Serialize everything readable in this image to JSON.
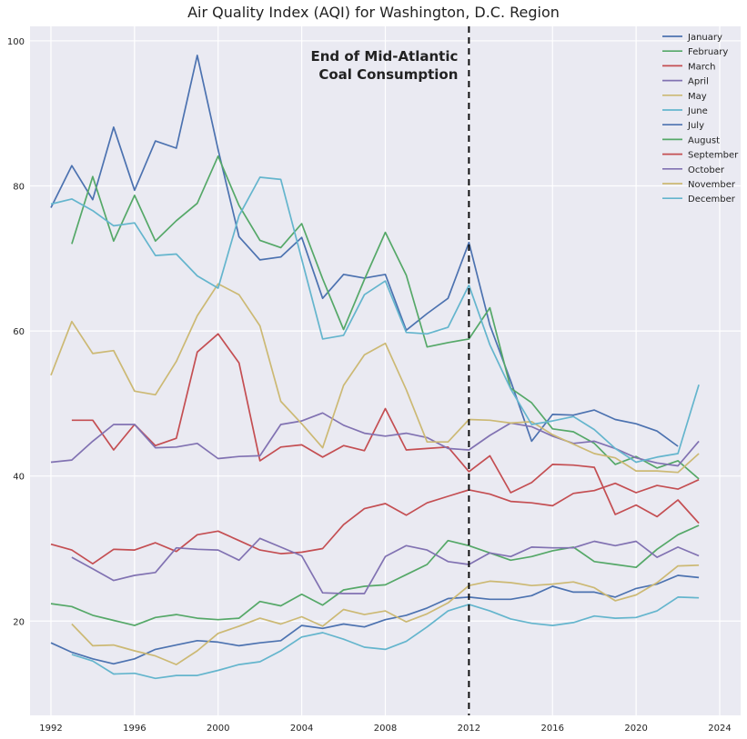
{
  "chart_data": {
    "type": "line",
    "title": "Air Quality Index (AQI) for Washington, D.C. Region",
    "xlabel": "",
    "ylabel": "",
    "xlim": [
      1991,
      2025
    ],
    "ylim": [
      7,
      102
    ],
    "x_ticks": [
      "1992",
      "1996",
      "2000",
      "2004",
      "2008",
      "2012",
      "2016",
      "2020",
      "2024"
    ],
    "y_ticks": [
      "20",
      "40",
      "60",
      "80",
      "100"
    ],
    "grid": true,
    "legend_position": "top-right",
    "annotation": {
      "line1": "End of Mid-Atlantic",
      "line2": "Coal Consumption",
      "x": 2012
    },
    "series": [
      {
        "name": "January",
        "color": "#4c72b0",
        "x": [
          1992,
          1993,
          1994,
          1995,
          1996,
          1997,
          1998,
          1999,
          2000,
          2001,
          2002,
          2003,
          2004,
          2005,
          2006,
          2007,
          2008,
          2009,
          2010,
          2011,
          2012,
          2013,
          2014,
          2015,
          2016,
          2017,
          2018,
          2019,
          2020,
          2021,
          2022,
          2023
        ],
        "y": [
          17.0,
          15.7,
          14.8,
          14.1,
          14.8,
          16.1,
          16.7,
          17.3,
          17.1,
          16.6,
          17.0,
          17.3,
          19.4,
          19.0,
          19.6,
          19.2,
          20.2,
          20.8,
          21.8,
          23.1,
          23.3,
          23.0,
          23.0,
          23.5,
          24.8,
          24.0,
          24.0,
          23.3,
          24.5,
          25.1,
          26.3,
          26.0
        ]
      },
      {
        "name": "February",
        "color": "#55a868",
        "x": [
          1992,
          1993,
          1994,
          1995,
          1996,
          1997,
          1998,
          1999,
          2000,
          2001,
          2002,
          2003,
          2004,
          2005,
          2006,
          2007,
          2008,
          2009,
          2010,
          2011,
          2012,
          2013,
          2014,
          2015,
          2016,
          2017,
          2018,
          2019,
          2020,
          2021,
          2022,
          2023
        ],
        "y": [
          22.4,
          22.0,
          20.8,
          20.1,
          19.4,
          20.5,
          20.9,
          20.4,
          20.2,
          20.4,
          22.7,
          22.1,
          23.7,
          22.2,
          24.3,
          24.8,
          25.0,
          26.4,
          27.8,
          31.1,
          30.4,
          29.4,
          28.4,
          28.9,
          29.7,
          30.2,
          28.2,
          27.8,
          27.4,
          29.9,
          31.9,
          33.2
        ]
      },
      {
        "name": "March",
        "color": "#c44e52",
        "x": [
          1992,
          1993,
          1994,
          1995,
          1996,
          1997,
          1998,
          1999,
          2000,
          2001,
          2002,
          2003,
          2004,
          2005,
          2006,
          2007,
          2008,
          2009,
          2010,
          2011,
          2012,
          2013,
          2014,
          2015,
          2016,
          2017,
          2018,
          2019,
          2020,
          2021,
          2022,
          2023
        ],
        "y": [
          30.6,
          29.8,
          27.9,
          29.9,
          29.8,
          30.8,
          29.6,
          31.9,
          32.4,
          31.1,
          29.8,
          29.3,
          29.5,
          30.0,
          33.3,
          35.5,
          36.2,
          34.6,
          36.3,
          37.2,
          38.1,
          37.5,
          36.5,
          36.3,
          35.9,
          37.6,
          38.0,
          39.0,
          37.7,
          38.7,
          38.2,
          39.5
        ]
      },
      {
        "name": "April",
        "color": "#8172b2",
        "x": [
          1993,
          1994,
          1995,
          1996,
          1997,
          1998,
          1999,
          2000,
          2001,
          2002,
          2003,
          2004,
          2005,
          2006,
          2007,
          2008,
          2009,
          2010,
          2011,
          2012,
          2013,
          2014,
          2015,
          2016,
          2017,
          2018,
          2019,
          2020,
          2021,
          2022,
          2023
        ],
        "y": [
          28.8,
          27.2,
          25.6,
          26.3,
          26.7,
          30.1,
          29.9,
          29.8,
          28.4,
          31.4,
          30.2,
          29.0,
          23.9,
          23.8,
          23.8,
          28.9,
          30.4,
          29.8,
          28.2,
          27.8,
          29.4,
          28.9,
          30.2,
          30.1,
          30.1,
          31.0,
          30.4,
          31.0,
          28.8,
          30.2,
          29.0
        ]
      },
      {
        "name": "May",
        "color": "#ccb974",
        "x": [
          1993,
          1994,
          1995,
          1996,
          1997,
          1998,
          1999,
          2000,
          2001,
          2002,
          2003,
          2004,
          2005,
          2006,
          2007,
          2008,
          2009,
          2010,
          2011,
          2012,
          2013,
          2014,
          2015,
          2016,
          2017,
          2018,
          2019,
          2020,
          2021,
          2022,
          2023
        ],
        "y": [
          19.6,
          16.6,
          16.7,
          15.9,
          15.2,
          14.0,
          15.9,
          18.3,
          19.3,
          20.4,
          19.6,
          20.6,
          19.3,
          21.6,
          20.9,
          21.4,
          19.9,
          21.0,
          22.5,
          24.9,
          25.5,
          25.3,
          24.9,
          25.1,
          25.4,
          24.6,
          22.8,
          23.6,
          25.3,
          27.6,
          27.7
        ]
      },
      {
        "name": "June",
        "color": "#64b5cd",
        "x": [
          1993,
          1994,
          1995,
          1996,
          1997,
          1998,
          1999,
          2000,
          2001,
          2002,
          2003,
          2004,
          2005,
          2006,
          2007,
          2008,
          2009,
          2010,
          2011,
          2012,
          2013,
          2014,
          2015,
          2016,
          2017,
          2018,
          2019,
          2020,
          2021,
          2022,
          2023
        ],
        "y": [
          15.4,
          14.5,
          12.7,
          12.8,
          12.1,
          12.5,
          12.5,
          13.2,
          14.0,
          14.4,
          15.9,
          17.8,
          18.4,
          17.5,
          16.4,
          16.1,
          17.2,
          19.2,
          21.4,
          22.3,
          21.4,
          20.3,
          19.7,
          19.4,
          19.8,
          20.7,
          20.4,
          20.5,
          21.4,
          23.3,
          23.2
        ]
      },
      {
        "name": "July",
        "color": "#4c72b0",
        "x": [
          1992,
          1993,
          1994,
          1995,
          1996,
          1997,
          1998,
          1999,
          2000,
          2001,
          2002,
          2003,
          2004,
          2005,
          2006,
          2007,
          2008,
          2009,
          2010,
          2011,
          2012,
          2013,
          2014,
          2015,
          2016,
          2017,
          2018,
          2019,
          2020,
          2021,
          2022,
          2023
        ],
        "y": [
          77.0,
          82.8,
          78.1,
          88.1,
          79.4,
          86.2,
          85.2,
          98.0,
          85.0,
          73.0,
          69.8,
          70.2,
          72.9,
          64.5,
          67.8,
          67.3,
          67.8,
          60.1,
          62.4,
          64.5,
          72.2,
          60.8,
          53.1,
          44.8,
          48.5,
          48.4,
          49.1,
          47.8,
          47.2,
          46.2,
          44.1,
          null
        ]
      },
      {
        "name": "August",
        "color": "#55a868",
        "x": [
          1993,
          1994,
          1995,
          1996,
          1997,
          1998,
          1999,
          2000,
          2001,
          2002,
          2003,
          2004,
          2005,
          2006,
          2007,
          2008,
          2009,
          2010,
          2011,
          2012,
          2013,
          2014,
          2015,
          2016,
          2017,
          2018,
          2019,
          2020,
          2021,
          2022,
          2023
        ],
        "y": [
          72.0,
          81.3,
          72.4,
          78.7,
          72.4,
          75.2,
          77.6,
          84.1,
          77.3,
          72.5,
          71.5,
          74.8,
          67.2,
          60.2,
          67.1,
          73.6,
          67.7,
          57.8,
          58.4,
          58.9,
          63.2,
          52.1,
          50.1,
          46.5,
          46.1,
          44.5,
          41.6,
          42.7,
          41.1,
          42.1,
          39.6
        ]
      },
      {
        "name": "September",
        "color": "#c44e52",
        "x": [
          1993,
          1994,
          1995,
          1996,
          1997,
          1998,
          1999,
          2000,
          2001,
          2002,
          2003,
          2004,
          2005,
          2006,
          2007,
          2008,
          2009,
          2010,
          2011,
          2012,
          2013,
          2014,
          2015,
          2016,
          2017,
          2018,
          2019,
          2020,
          2021,
          2022,
          2023
        ],
        "y": [
          47.7,
          47.7,
          43.6,
          47.1,
          44.2,
          45.2,
          57.1,
          59.6,
          55.6,
          42.1,
          44.0,
          44.3,
          42.6,
          44.2,
          43.5,
          49.3,
          43.6,
          43.8,
          44.0,
          40.6,
          42.8,
          37.7,
          39.1,
          41.6,
          41.5,
          41.2,
          34.7,
          36.0,
          34.4,
          36.7,
          33.5
        ]
      },
      {
        "name": "October",
        "color": "#8172b2",
        "x": [
          1992,
          1993,
          1994,
          1995,
          1996,
          1997,
          1998,
          1999,
          2000,
          2001,
          2002,
          2003,
          2004,
          2005,
          2006,
          2007,
          2008,
          2009,
          2010,
          2011,
          2012,
          2013,
          2014,
          2015,
          2016,
          2017,
          2018,
          2019,
          2020,
          2021,
          2022,
          2023
        ],
        "y": [
          41.9,
          42.2,
          44.8,
          47.1,
          47.1,
          43.9,
          44.0,
          44.5,
          42.4,
          42.7,
          42.8,
          47.1,
          47.6,
          48.7,
          47.0,
          45.9,
          45.5,
          45.9,
          45.3,
          43.8,
          43.6,
          45.6,
          47.3,
          46.8,
          45.5,
          44.5,
          44.8,
          43.8,
          42.5,
          41.8,
          41.4,
          44.8
        ]
      },
      {
        "name": "November",
        "color": "#ccb974",
        "x": [
          1992,
          1993,
          1994,
          1995,
          1996,
          1997,
          1998,
          1999,
          2000,
          2001,
          2002,
          2003,
          2004,
          2005,
          2006,
          2007,
          2008,
          2009,
          2010,
          2011,
          2012,
          2013,
          2014,
          2015,
          2016,
          2017,
          2018,
          2019,
          2020,
          2021,
          2022,
          2023
        ],
        "y": [
          53.9,
          61.3,
          56.9,
          57.3,
          51.7,
          51.2,
          55.8,
          62.1,
          66.5,
          65.0,
          60.7,
          50.3,
          47.2,
          43.9,
          52.5,
          56.7,
          58.3,
          51.9,
          44.7,
          44.7,
          47.8,
          47.7,
          47.3,
          47.5,
          45.7,
          44.4,
          43.1,
          42.5,
          40.7,
          40.7,
          40.5,
          43.1
        ]
      },
      {
        "name": "December",
        "color": "#64b5cd",
        "x": [
          1992,
          1993,
          1994,
          1995,
          1996,
          1997,
          1998,
          1999,
          2000,
          2001,
          2002,
          2003,
          2004,
          2005,
          2006,
          2007,
          2008,
          2009,
          2010,
          2011,
          2012,
          2013,
          2014,
          2015,
          2016,
          2017,
          2018,
          2019,
          2020,
          2021,
          2022,
          2023
        ],
        "y": [
          77.5,
          78.2,
          76.6,
          74.5,
          74.9,
          70.4,
          70.6,
          67.6,
          65.9,
          75.9,
          81.2,
          80.9,
          69.9,
          58.9,
          59.4,
          65.0,
          66.9,
          59.8,
          59.6,
          60.5,
          66.3,
          58.1,
          52.0,
          47.1,
          47.6,
          48.2,
          46.4,
          43.8,
          41.9,
          42.6,
          43.1,
          52.6
        ]
      }
    ]
  }
}
